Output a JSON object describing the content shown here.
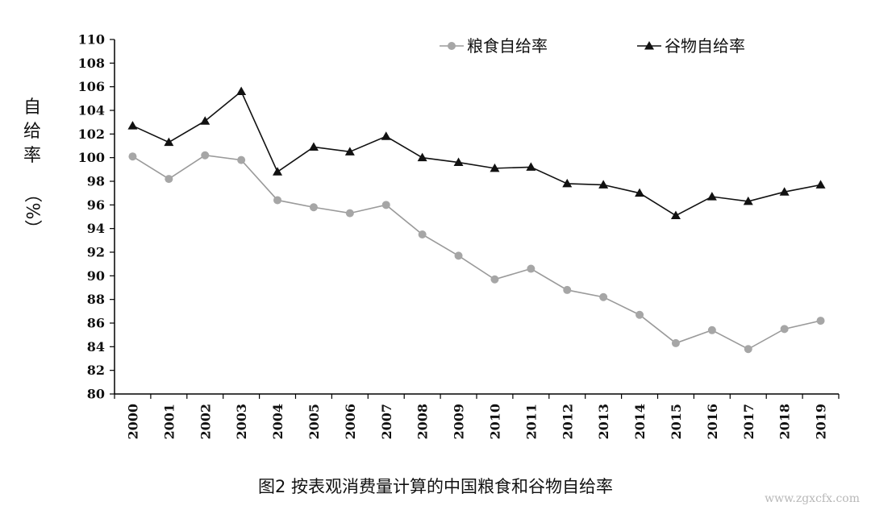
{
  "chart_data": {
    "type": "line",
    "title": "",
    "xlabel": "",
    "ylabel_chars": [
      "自",
      "给",
      "率"
    ],
    "ylabel_unit": "（%）",
    "ylim": [
      80,
      110
    ],
    "ytick_step": 2,
    "categories": [
      "2000",
      "2001",
      "2002",
      "2003",
      "2004",
      "2005",
      "2006",
      "2007",
      "2008",
      "2009",
      "2010",
      "2011",
      "2012",
      "2013",
      "2014",
      "2015",
      "2016",
      "2017",
      "2018",
      "2019"
    ],
    "series": [
      {
        "name": "粮食自给率",
        "marker": "circle",
        "color": "#a6a6a6",
        "line_color": "#9a9a9a",
        "values": [
          100.1,
          98.2,
          100.2,
          99.8,
          96.4,
          95.8,
          95.3,
          96.0,
          93.5,
          91.7,
          89.7,
          90.6,
          88.8,
          88.2,
          86.7,
          84.3,
          85.4,
          83.8,
          85.5,
          86.2
        ]
      },
      {
        "name": "谷物自给率",
        "marker": "triangle",
        "color": "#111111",
        "line_color": "#111111",
        "values": [
          102.7,
          101.3,
          103.1,
          105.6,
          98.8,
          100.9,
          100.5,
          101.8,
          100.0,
          99.6,
          99.1,
          99.2,
          97.8,
          97.7,
          97.0,
          95.1,
          96.7,
          96.3,
          97.1,
          97.7
        ]
      }
    ],
    "legend_position": "top-right",
    "grid": false
  },
  "caption": "图2  按表观消费量计算的中国粮食和谷物自给率",
  "watermark": "www.zgxcfx.com"
}
